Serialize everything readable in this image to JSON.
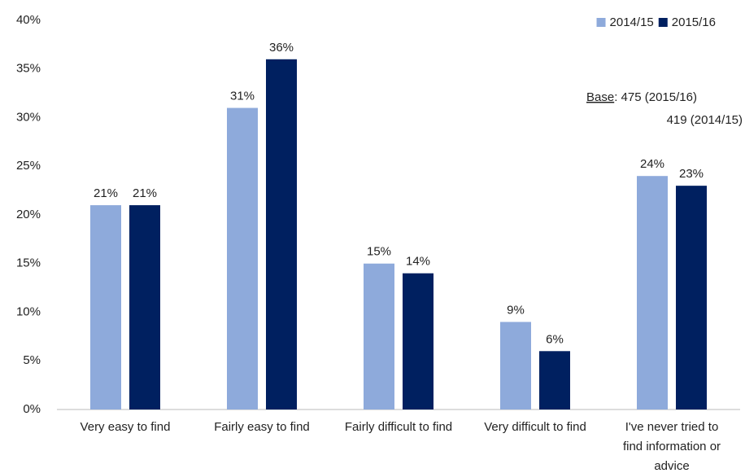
{
  "chart_data": {
    "type": "bar",
    "categories": [
      "Very easy to find",
      "Fairly easy to find",
      "Fairly difficult to find",
      "Very difficult to find",
      "I've never tried to find information or advice"
    ],
    "series": [
      {
        "name": "2014/15",
        "color": "#8eaadb",
        "values": [
          21,
          31,
          15,
          9,
          24
        ],
        "value_labels": [
          "21%",
          "31%",
          "15%",
          "9%",
          "24%"
        ]
      },
      {
        "name": "2015/16",
        "color": "#002060",
        "values": [
          21,
          36,
          14,
          6,
          23
        ],
        "value_labels": [
          "21%",
          "36%",
          "14%",
          "6%",
          "23%"
        ]
      }
    ],
    "ylim": [
      0,
      40
    ],
    "yticks": [
      {
        "value": 0,
        "label": "0%"
      },
      {
        "value": 5,
        "label": "5%"
      },
      {
        "value": 10,
        "label": "10%"
      },
      {
        "value": 15,
        "label": "15%"
      },
      {
        "value": 20,
        "label": "20%"
      },
      {
        "value": 25,
        "label": "25%"
      },
      {
        "value": 30,
        "label": "30%"
      },
      {
        "value": 35,
        "label": "35%"
      },
      {
        "value": 40,
        "label": "40%"
      }
    ],
    "grid": false,
    "legend": "top-right",
    "annotation": {
      "label": "Base",
      "lines": [
        ": 475 (2015/16)",
        "419 (2014/15)"
      ]
    }
  }
}
